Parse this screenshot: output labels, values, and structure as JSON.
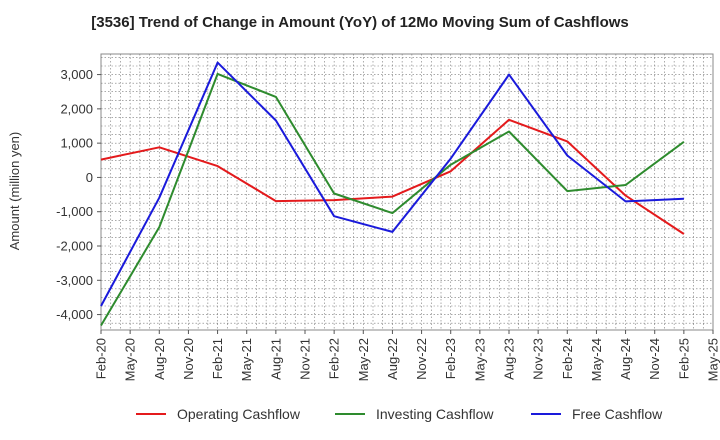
{
  "chart_data": {
    "type": "line",
    "title": "[3536]  Trend of Change in Amount (YoY) of 12Mo Moving Sum of Cashflows",
    "xlabel": "",
    "ylabel": "Amount (million yen)",
    "ylim": [
      -4450,
      3600
    ],
    "yticks": [
      -4000,
      -3000,
      -2000,
      -1000,
      0,
      1000,
      2000,
      3000
    ],
    "ytick_labels": [
      "-4,000",
      "-3,000",
      "-2,000",
      "-1,000",
      "0",
      "1,000",
      "2,000",
      "3,000"
    ],
    "x_tick_labels": [
      "Feb-20",
      "May-20",
      "Aug-20",
      "Nov-20",
      "Feb-21",
      "May-21",
      "Aug-21",
      "Nov-21",
      "Feb-22",
      "May-22",
      "Aug-22",
      "Nov-22",
      "Feb-23",
      "May-23",
      "Aug-23",
      "Nov-23",
      "Feb-24",
      "May-24",
      "Aug-24",
      "Nov-24",
      "Feb-25",
      "May-25"
    ],
    "grid": true,
    "legend_position": "bottom",
    "series": [
      {
        "name": "Operating Cashflow",
        "color": "#e41a1c",
        "points": [
          [
            0,
            520
          ],
          [
            2,
            880
          ],
          [
            4,
            330
          ],
          [
            6,
            -690
          ],
          [
            8,
            -660
          ],
          [
            10,
            -560
          ],
          [
            12,
            180
          ],
          [
            14,
            1680
          ],
          [
            16,
            1050
          ],
          [
            18,
            -530
          ],
          [
            20,
            -1650
          ]
        ]
      },
      {
        "name": "Investing Cashflow",
        "color": "#2e8b2e",
        "points": [
          [
            0,
            -4320
          ],
          [
            2,
            -1450
          ],
          [
            4,
            3020
          ],
          [
            6,
            2350
          ],
          [
            8,
            -470
          ],
          [
            10,
            -1040
          ],
          [
            12,
            370
          ],
          [
            14,
            1340
          ],
          [
            16,
            -400
          ],
          [
            18,
            -220
          ],
          [
            20,
            1040
          ]
        ]
      },
      {
        "name": "Free Cashflow",
        "color": "#1a1adb",
        "points": [
          [
            0,
            -3750
          ],
          [
            2,
            -590
          ],
          [
            4,
            3350
          ],
          [
            6,
            1660
          ],
          [
            8,
            -1130
          ],
          [
            10,
            -1590
          ],
          [
            12,
            550
          ],
          [
            14,
            3000
          ],
          [
            16,
            640
          ],
          [
            18,
            -700
          ],
          [
            20,
            -620
          ]
        ]
      }
    ]
  }
}
